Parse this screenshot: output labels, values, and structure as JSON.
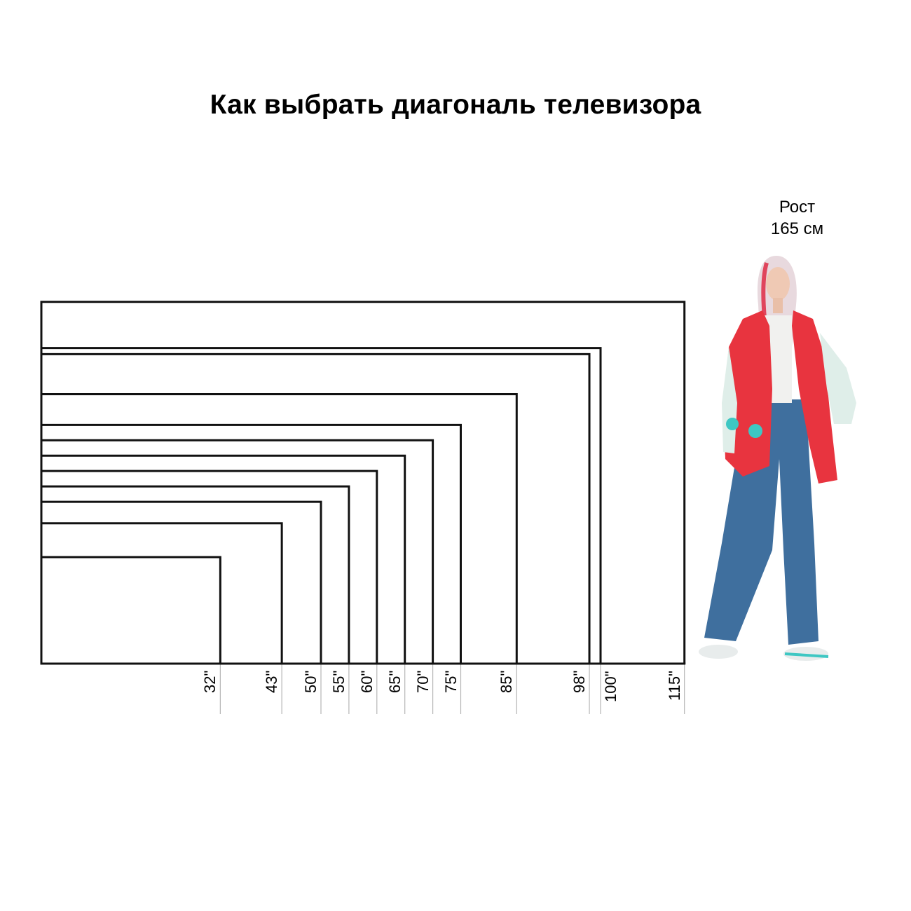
{
  "title": "Как выбрать диагональ телевизора",
  "person": {
    "height_line1": "Рост",
    "height_line2": "165 см"
  },
  "diagonals": [
    {
      "inches": 32,
      "label": "32\""
    },
    {
      "inches": 43,
      "label": "43\""
    },
    {
      "inches": 50,
      "label": "50\""
    },
    {
      "inches": 55,
      "label": "55\""
    },
    {
      "inches": 60,
      "label": "60\""
    },
    {
      "inches": 65,
      "label": "65\""
    },
    {
      "inches": 70,
      "label": "70\""
    },
    {
      "inches": 75,
      "label": "75\""
    },
    {
      "inches": 85,
      "label": "85\""
    },
    {
      "inches": 98,
      "label": "98\""
    },
    {
      "inches": 100,
      "label": "100\""
    },
    {
      "inches": 115,
      "label": "115\""
    }
  ],
  "colors": {
    "outline": "#111111",
    "tick_line": "#b5b5b5",
    "jacket": "#e8343f",
    "jeans": "#3f6f9e"
  }
}
